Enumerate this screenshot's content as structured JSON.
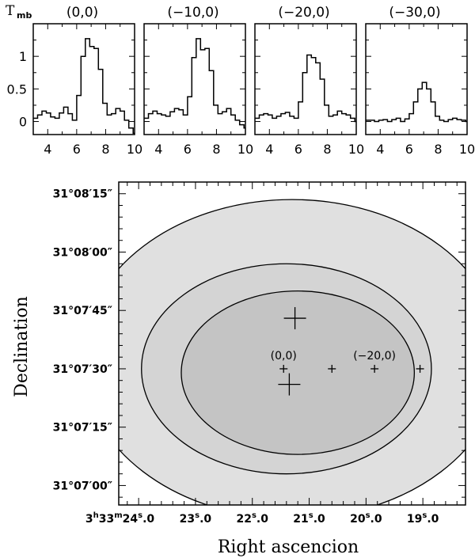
{
  "chart_data": [
    {
      "type": "line",
      "panel": "(0,0)",
      "title": "(0,0)",
      "ylabel_main": "T",
      "ylabel_sub": "mb",
      "xlim": [
        3,
        10
      ],
      "ylim": [
        -0.2,
        1.5
      ],
      "xticks": [
        "4",
        "6",
        "8",
        "10"
      ],
      "yticks": [
        "0",
        "0.5",
        "1"
      ],
      "x": [
        3.0,
        3.3,
        3.6,
        3.9,
        4.2,
        4.5,
        4.8,
        5.1,
        5.4,
        5.7,
        6.0,
        6.3,
        6.6,
        6.9,
        7.2,
        7.5,
        7.8,
        8.1,
        8.4,
        8.7,
        9.0,
        9.3,
        9.6,
        9.9
      ],
      "values": [
        0.05,
        0.1,
        0.16,
        0.13,
        0.07,
        0.05,
        0.13,
        0.22,
        0.12,
        0.02,
        0.4,
        1.0,
        1.27,
        1.15,
        1.12,
        0.8,
        0.28,
        0.1,
        0.12,
        0.2,
        0.16,
        0.02,
        -0.1,
        -0.18
      ]
    },
    {
      "type": "line",
      "panel": "(-10,0)",
      "title": "(−10,0)",
      "xlim": [
        3,
        10
      ],
      "ylim": [
        -0.2,
        1.5
      ],
      "xticks": [
        "4",
        "6",
        "8",
        "10"
      ],
      "x": [
        3.0,
        3.3,
        3.6,
        3.9,
        4.2,
        4.5,
        4.8,
        5.1,
        5.4,
        5.7,
        6.0,
        6.3,
        6.6,
        6.9,
        7.2,
        7.5,
        7.8,
        8.1,
        8.4,
        8.7,
        9.0,
        9.3,
        9.6,
        9.9
      ],
      "values": [
        0.05,
        0.12,
        0.16,
        0.12,
        0.1,
        0.08,
        0.15,
        0.2,
        0.18,
        0.1,
        0.38,
        0.98,
        1.27,
        1.1,
        1.12,
        0.78,
        0.25,
        0.12,
        0.15,
        0.2,
        0.1,
        0.02,
        -0.05,
        -0.1
      ]
    },
    {
      "type": "line",
      "panel": "(-20,0)",
      "title": "(−20,0)",
      "xlim": [
        3,
        10
      ],
      "ylim": [
        -0.2,
        1.5
      ],
      "xticks": [
        "4",
        "6",
        "8",
        "10"
      ],
      "x": [
        3.0,
        3.3,
        3.6,
        3.9,
        4.2,
        4.5,
        4.8,
        5.1,
        5.4,
        5.7,
        6.0,
        6.3,
        6.6,
        6.9,
        7.2,
        7.5,
        7.8,
        8.1,
        8.4,
        8.7,
        9.0,
        9.3,
        9.6,
        9.9
      ],
      "values": [
        0.05,
        0.1,
        0.12,
        0.1,
        0.05,
        0.08,
        0.12,
        0.14,
        0.08,
        0.05,
        0.3,
        0.75,
        1.02,
        0.98,
        0.9,
        0.65,
        0.25,
        0.08,
        0.1,
        0.16,
        0.12,
        0.1,
        0.05,
        0.0
      ]
    },
    {
      "type": "line",
      "panel": "(-30,0)",
      "title": "(−30,0)",
      "xlim": [
        3,
        10
      ],
      "ylim": [
        -0.2,
        1.5
      ],
      "xticks": [
        "4",
        "6",
        "8",
        "10"
      ],
      "x": [
        3.0,
        3.3,
        3.6,
        3.9,
        4.2,
        4.5,
        4.8,
        5.1,
        5.4,
        5.7,
        6.0,
        6.3,
        6.6,
        6.9,
        7.2,
        7.5,
        7.8,
        8.1,
        8.4,
        8.7,
        9.0,
        9.3,
        9.6,
        9.9
      ],
      "values": [
        0.02,
        0.02,
        0.0,
        0.02,
        0.03,
        0.0,
        0.03,
        0.05,
        0.0,
        0.04,
        0.12,
        0.3,
        0.5,
        0.6,
        0.5,
        0.3,
        0.08,
        0.02,
        0.0,
        0.03,
        0.05,
        0.03,
        0.02,
        0.0
      ]
    },
    {
      "type": "map",
      "xlabel": "Right ascencion",
      "ylabel": "Declination",
      "ra_lim_s": [
        24.35,
        18.25
      ],
      "dec_lim_s": [
        55,
        138
      ],
      "ra_ticks": [
        {
          "value": 24.0,
          "label_h": "3",
          "label_hsup": "h",
          "label_m": "33",
          "label_msup": "m",
          "label_s": "24",
          "label_ssup": "s",
          "label_frac": ".0"
        },
        {
          "value": 23.0,
          "label_s": "23",
          "label_ssup": "s",
          "label_frac": ".0"
        },
        {
          "value": 22.0,
          "label_s": "22",
          "label_ssup": "s",
          "label_frac": ".0"
        },
        {
          "value": 21.0,
          "label_s": "21",
          "label_ssup": "s",
          "label_frac": ".0"
        },
        {
          "value": 20.0,
          "label_s": "20",
          "label_ssup": "s",
          "label_frac": ".0"
        },
        {
          "value": 19.0,
          "label_s": "19",
          "label_ssup": "s",
          "label_frac": ".0"
        }
      ],
      "dec_ticks": [
        {
          "value": 135,
          "label": "31°08′15″"
        },
        {
          "value": 120,
          "label": "31°08′00″"
        },
        {
          "value": 105,
          "label": "31°07′45″"
        },
        {
          "value": 90,
          "label": "31°07′30″"
        },
        {
          "value": 75,
          "label": "31°07′15″"
        },
        {
          "value": 60,
          "label": "31°07′00″"
        }
      ],
      "ellipses": [
        {
          "name": "outer",
          "ra_c": 21.3,
          "dec_c": 92.5,
          "ra_r": 3.7,
          "dec_r": 41,
          "fill": "#e0e0e0"
        },
        {
          "name": "middle",
          "ra_c": 21.4,
          "dec_c": 90,
          "ra_r": 2.55,
          "dec_r": 27,
          "fill": "#d4d4d4"
        },
        {
          "name": "inner",
          "ra_c": 21.2,
          "dec_c": 89,
          "ra_r": 2.05,
          "dec_r": 21,
          "fill": "#c4c4c4"
        }
      ],
      "points": [
        {
          "ra": 21.45,
          "dec": 90,
          "size": "small",
          "label": "(0,0)"
        },
        {
          "ra": 20.6,
          "dec": 90,
          "size": "small",
          "label": ""
        },
        {
          "ra": 19.85,
          "dec": 90,
          "size": "small",
          "label": "(−20,0)"
        },
        {
          "ra": 19.05,
          "dec": 90,
          "size": "small",
          "label": ""
        },
        {
          "ra": 21.25,
          "dec": 103,
          "size": "large",
          "label": ""
        },
        {
          "ra": 21.35,
          "dec": 86,
          "size": "large",
          "label": ""
        }
      ]
    }
  ]
}
